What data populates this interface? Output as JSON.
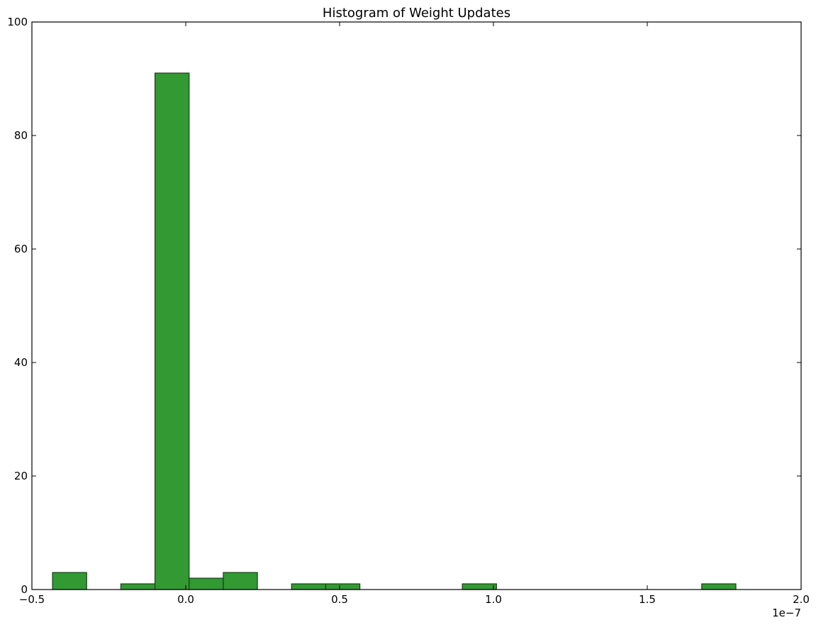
{
  "chart_data": {
    "type": "bar",
    "title": "Histogram of Weight Updates",
    "xlabel": "",
    "ylabel": "",
    "x_scale_label": "1e−7",
    "xlim": [
      -0.5,
      2.0
    ],
    "ylim": [
      0,
      100
    ],
    "x_ticks": [
      -0.5,
      0.0,
      0.5,
      1.0,
      1.5,
      2.0
    ],
    "x_tick_labels": [
      "−0.5",
      "0.0",
      "0.5",
      "1.0",
      "1.5",
      "2.0"
    ],
    "y_ticks": [
      0,
      20,
      40,
      60,
      80,
      100
    ],
    "y_tick_labels": [
      "0",
      "20",
      "40",
      "60",
      "80",
      "100"
    ],
    "bar_color": "#339933",
    "edge_color": "#1a3d1a",
    "bins": [
      {
        "x0": -0.433,
        "x1": -0.322,
        "count": 3
      },
      {
        "x0": -0.211,
        "x1": -0.1,
        "count": 1
      },
      {
        "x0": -0.1,
        "x1": 0.011,
        "count": 91
      },
      {
        "x0": 0.011,
        "x1": 0.122,
        "count": 2
      },
      {
        "x0": 0.122,
        "x1": 0.233,
        "count": 3
      },
      {
        "x0": 0.344,
        "x1": 0.455,
        "count": 1
      },
      {
        "x0": 0.455,
        "x1": 0.566,
        "count": 1
      },
      {
        "x0": 0.899,
        "x1": 1.01,
        "count": 1
      },
      {
        "x0": 1.677,
        "x1": 1.788,
        "count": 1
      }
    ]
  }
}
